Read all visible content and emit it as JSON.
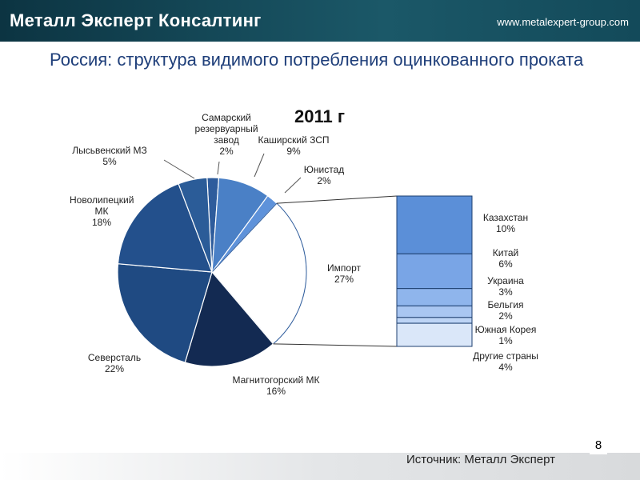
{
  "header": {
    "company": "Металл Эксперт Консалтинг",
    "url": "www.metalexpert-group.com"
  },
  "title": "Россия: структура видимого потребления оцинкованного проката",
  "chart_data": {
    "type": "pie",
    "title": "2011 г",
    "categories": [
      "Самарский резервуарный завод",
      "Каширский ЗСП",
      "Юнистад",
      "Импорт",
      "Магнитогорский МК",
      "Северсталь",
      "Новолипецкий МК",
      "Лысьвенский МЗ"
    ],
    "values": [
      2,
      9,
      2,
      27,
      16,
      22,
      18,
      5
    ],
    "value_labels": [
      "2%",
      "9%",
      "2%",
      "27%",
      "16%",
      "22%",
      "18%",
      "5%"
    ],
    "colors": [
      "#2e5c9c",
      "#4a80c6",
      "#5e92da",
      "#ffffff",
      "#132a52",
      "#1f4a82",
      "#23508c",
      "#2b5c98"
    ],
    "breakdown": {
      "categories": [
        "Казахстан",
        "Китай",
        "Украина",
        "Бельгия",
        "Южная Корея",
        "Другие страны"
      ],
      "values": [
        10,
        6,
        3,
        2,
        1,
        4
      ],
      "value_labels": [
        "10%",
        "6%",
        "3%",
        "2%",
        "1%",
        "4%"
      ],
      "colors": [
        "#5b8fd8",
        "#79a5e6",
        "#8fb5ec",
        "#a9c6f1",
        "#bdd4f5",
        "#dae7f9"
      ]
    }
  },
  "page_number": 8,
  "source": "Источник: Металл Эксперт"
}
